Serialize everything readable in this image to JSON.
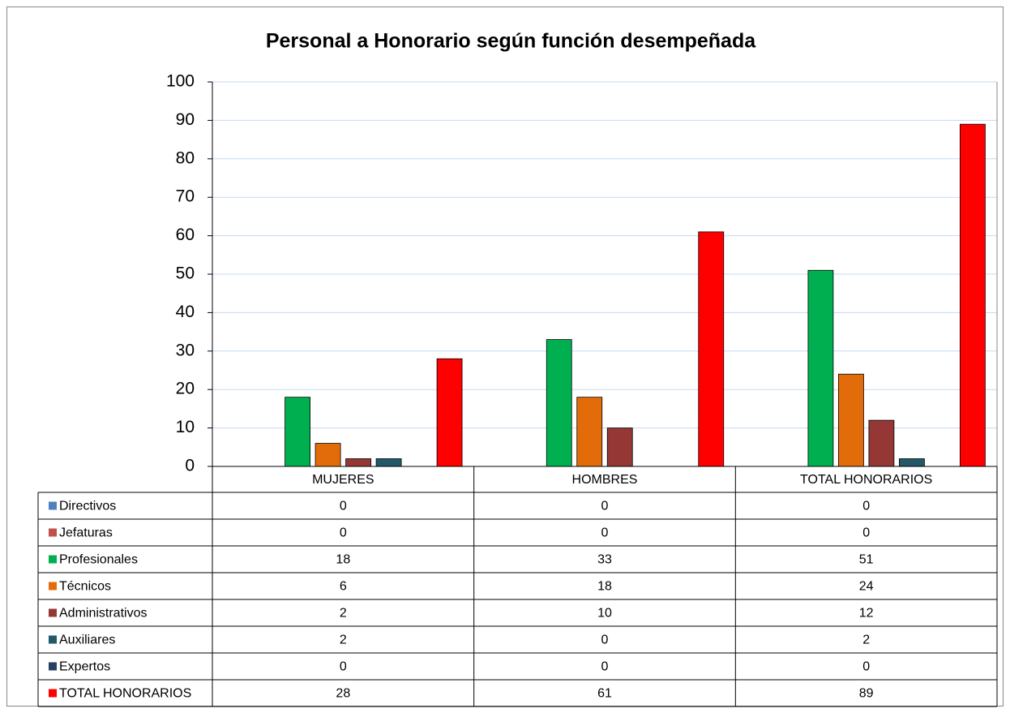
{
  "chart_data": {
    "type": "bar",
    "title": "Personal a Honorario según función desempeñada",
    "categories": [
      "MUJERES",
      "HOMBRES",
      "TOTAL HONORARIOS"
    ],
    "series": [
      {
        "name": "Directivos",
        "color": "#4f81bd",
        "values": [
          0,
          0,
          0
        ]
      },
      {
        "name": "Jefaturas",
        "color": "#c0504d",
        "values": [
          0,
          0,
          0
        ]
      },
      {
        "name": "Profesionales",
        "color": "#00b050",
        "values": [
          18,
          33,
          51
        ]
      },
      {
        "name": "Técnicos",
        "color": "#e36c0a",
        "values": [
          6,
          18,
          24
        ]
      },
      {
        "name": "Administrativos",
        "color": "#953735",
        "values": [
          2,
          10,
          12
        ]
      },
      {
        "name": "Auxiliares",
        "color": "#215968",
        "values": [
          2,
          0,
          2
        ]
      },
      {
        "name": "Expertos",
        "color": "#254061",
        "values": [
          0,
          0,
          0
        ]
      },
      {
        "name": "TOTAL HONORARIOS",
        "color": "#ff0000",
        "values": [
          28,
          61,
          89
        ]
      }
    ],
    "ylim": [
      0,
      100
    ],
    "yticks": [
      0,
      10,
      20,
      30,
      40,
      50,
      60,
      70,
      80,
      90,
      100
    ],
    "grid": true
  }
}
